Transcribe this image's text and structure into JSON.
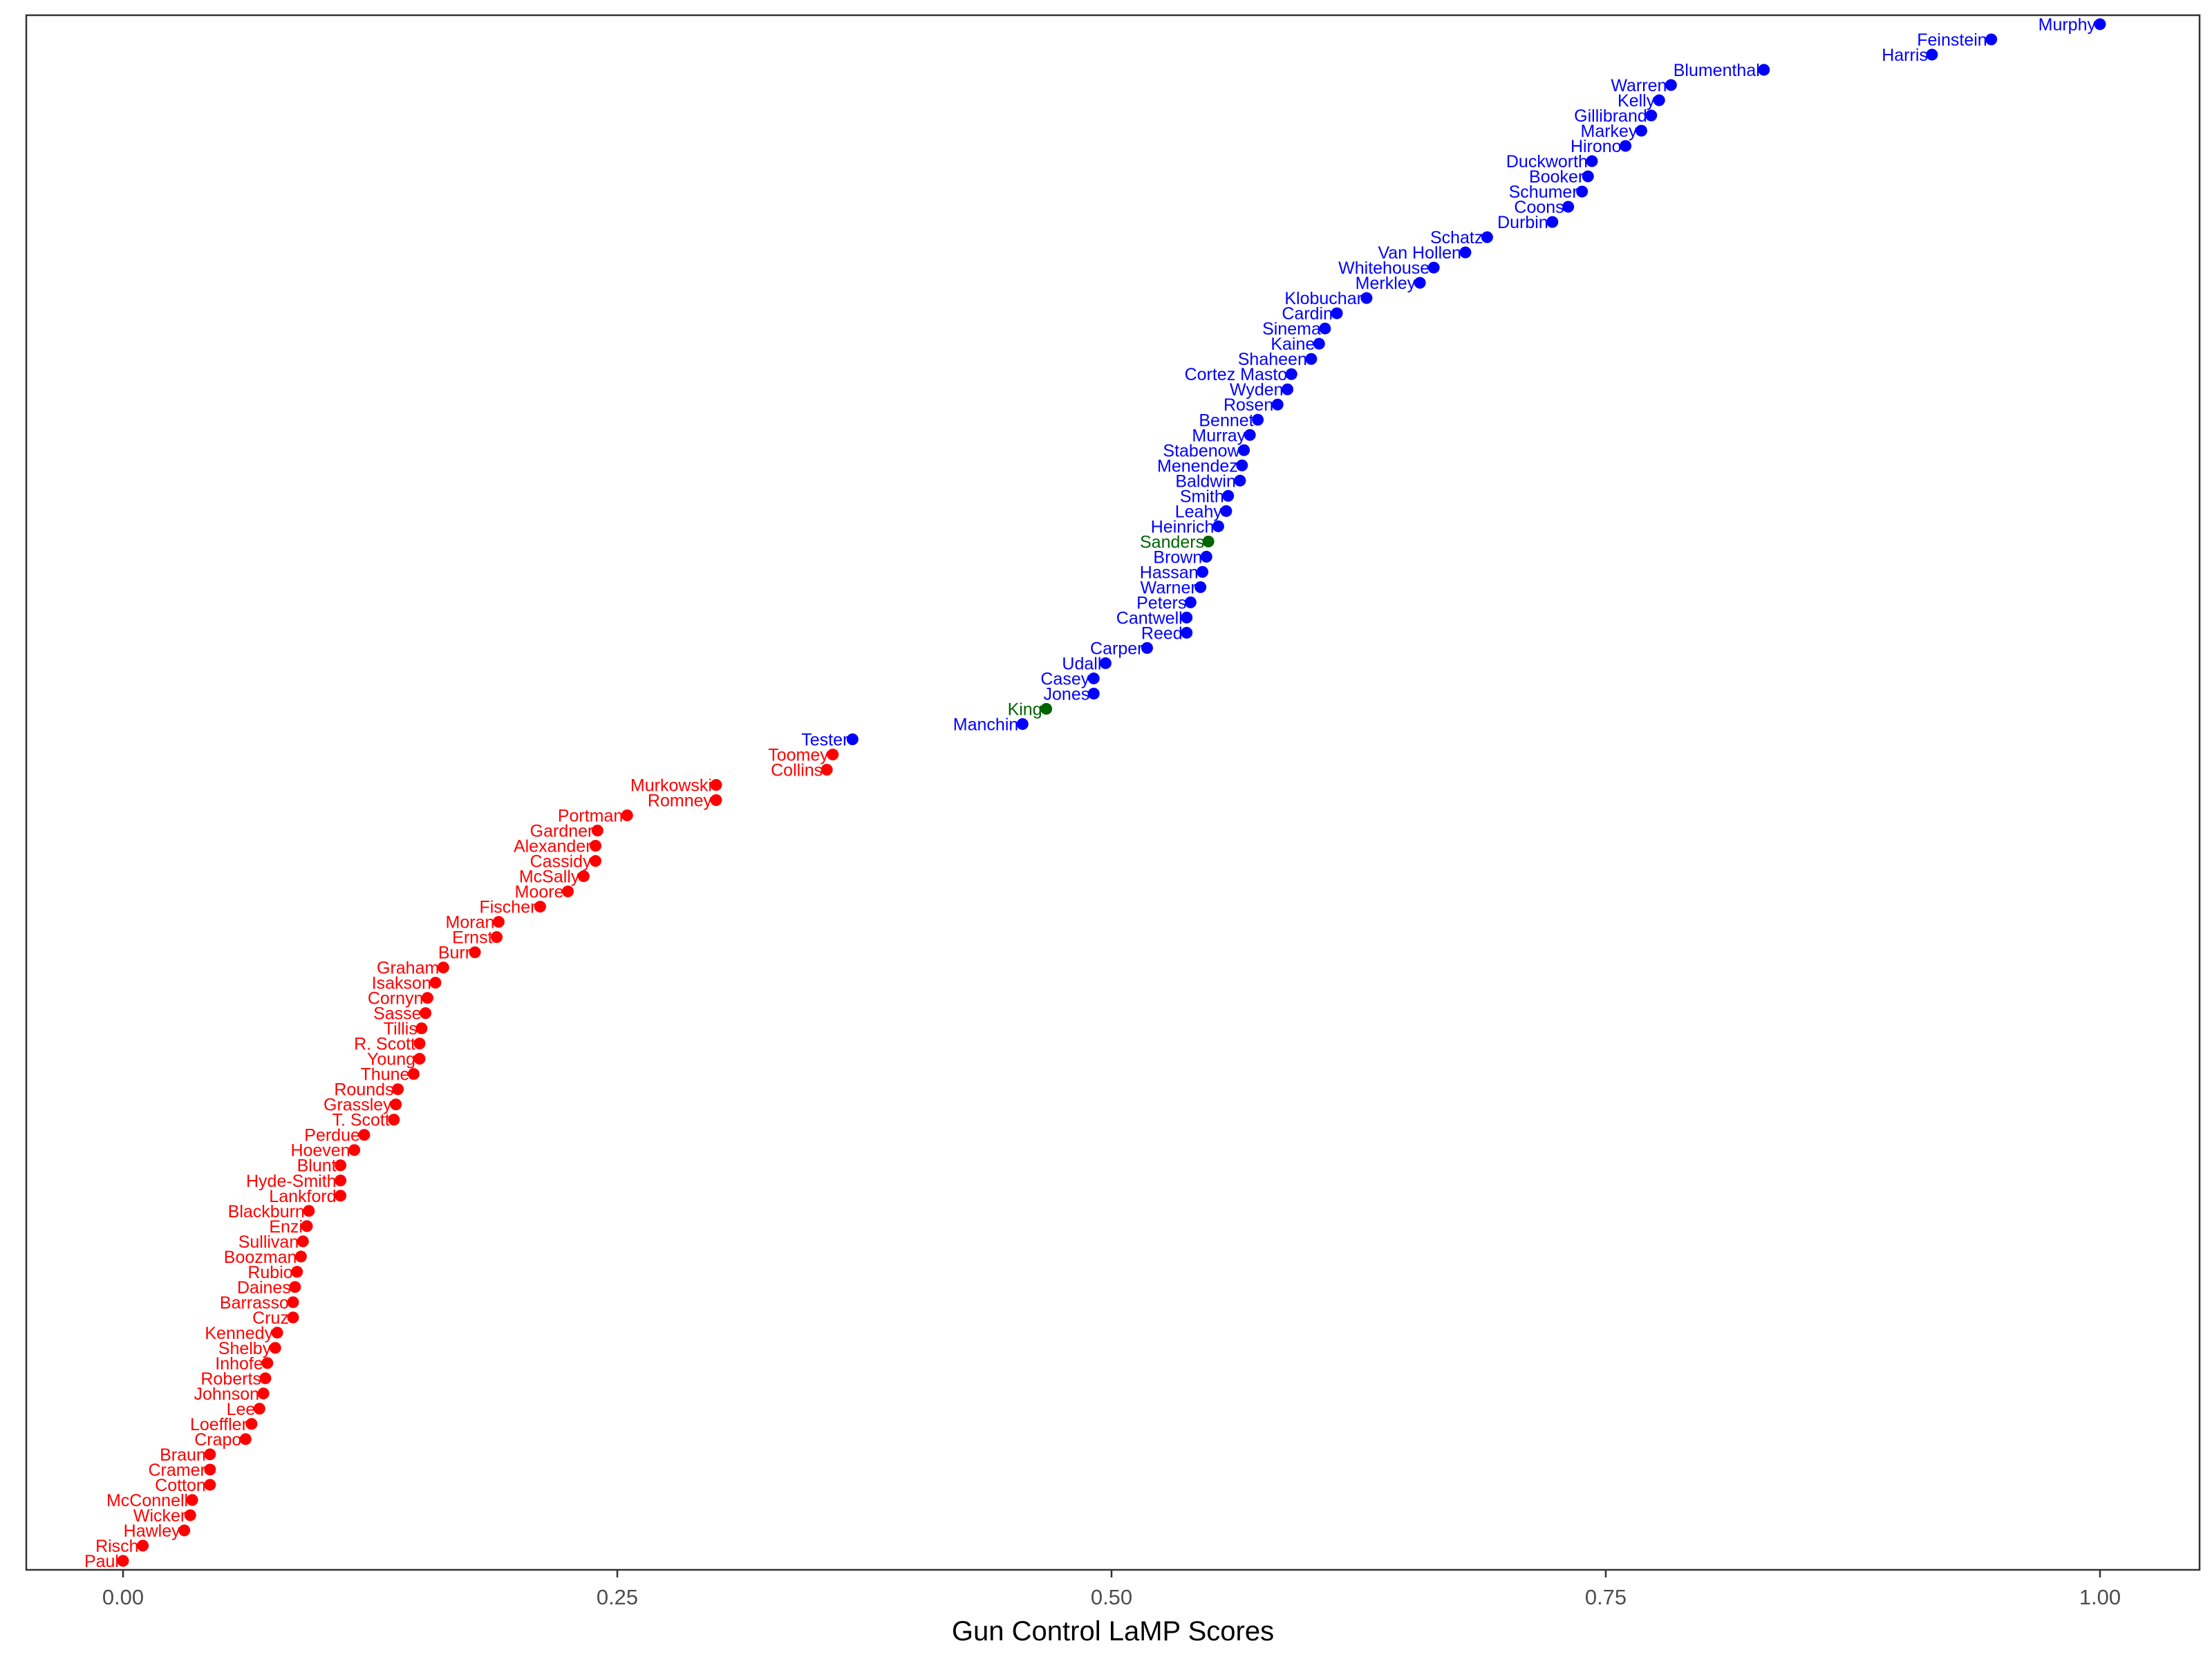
{
  "chart_data": {
    "type": "scatter",
    "xlabel": "Gun Control LaMP Scores",
    "ylabel": "",
    "xlim": [
      -0.1,
      1.1
    ],
    "x_ticks": [
      0.0,
      0.25,
      0.5,
      0.75,
      1.0
    ],
    "x_tick_labels": [
      "0.00",
      "0.25",
      "0.50",
      "0.75",
      "1.00"
    ],
    "grid": false,
    "ordering": "senators sorted by score, lowest at bottom",
    "party_colors": {
      "D": "#0000ff",
      "R": "#ff0000",
      "I": "#006400"
    },
    "points": [
      {
        "name": "Murphy",
        "x": 1.0,
        "party": "D"
      },
      {
        "name": "Feinstein",
        "x": 0.945,
        "party": "D"
      },
      {
        "name": "Harris",
        "x": 0.915,
        "party": "D"
      },
      {
        "name": "Blumenthal",
        "x": 0.83,
        "party": "D"
      },
      {
        "name": "Warren",
        "x": 0.783,
        "party": "D"
      },
      {
        "name": "Kelly",
        "x": 0.777,
        "party": "D"
      },
      {
        "name": "Gillibrand",
        "x": 0.773,
        "party": "D"
      },
      {
        "name": "Markey",
        "x": 0.768,
        "party": "D"
      },
      {
        "name": "Hirono",
        "x": 0.76,
        "party": "D"
      },
      {
        "name": "Duckworth",
        "x": 0.743,
        "party": "D"
      },
      {
        "name": "Booker",
        "x": 0.741,
        "party": "D"
      },
      {
        "name": "Schumer",
        "x": 0.738,
        "party": "D"
      },
      {
        "name": "Coons",
        "x": 0.731,
        "party": "D"
      },
      {
        "name": "Durbin",
        "x": 0.723,
        "party": "D"
      },
      {
        "name": "Schatz",
        "x": 0.69,
        "party": "D"
      },
      {
        "name": "Van Hollen",
        "x": 0.679,
        "party": "D"
      },
      {
        "name": "Whitehouse",
        "x": 0.663,
        "party": "D"
      },
      {
        "name": "Merkley",
        "x": 0.656,
        "party": "D"
      },
      {
        "name": "Klobuchar",
        "x": 0.629,
        "party": "D"
      },
      {
        "name": "Cardin",
        "x": 0.614,
        "party": "D"
      },
      {
        "name": "Sinema",
        "x": 0.608,
        "party": "D"
      },
      {
        "name": "Kaine",
        "x": 0.605,
        "party": "D"
      },
      {
        "name": "Shaheen",
        "x": 0.601,
        "party": "D"
      },
      {
        "name": "Cortez Masto",
        "x": 0.591,
        "party": "D"
      },
      {
        "name": "Wyden",
        "x": 0.589,
        "party": "D"
      },
      {
        "name": "Rosen",
        "x": 0.584,
        "party": "D"
      },
      {
        "name": "Bennet",
        "x": 0.574,
        "party": "D"
      },
      {
        "name": "Murray",
        "x": 0.57,
        "party": "D"
      },
      {
        "name": "Stabenow",
        "x": 0.567,
        "party": "D"
      },
      {
        "name": "Menendez",
        "x": 0.566,
        "party": "D"
      },
      {
        "name": "Baldwin",
        "x": 0.565,
        "party": "D"
      },
      {
        "name": "Smith",
        "x": 0.559,
        "party": "D"
      },
      {
        "name": "Leahy",
        "x": 0.558,
        "party": "D"
      },
      {
        "name": "Heinrich",
        "x": 0.554,
        "party": "D"
      },
      {
        "name": "Sanders",
        "x": 0.549,
        "party": "I"
      },
      {
        "name": "Brown",
        "x": 0.548,
        "party": "D"
      },
      {
        "name": "Hassan",
        "x": 0.546,
        "party": "D"
      },
      {
        "name": "Warner",
        "x": 0.545,
        "party": "D"
      },
      {
        "name": "Peters",
        "x": 0.54,
        "party": "D"
      },
      {
        "name": "Cantwell",
        "x": 0.538,
        "party": "D"
      },
      {
        "name": "Reed",
        "x": 0.538,
        "party": "D"
      },
      {
        "name": "Carper",
        "x": 0.518,
        "party": "D"
      },
      {
        "name": "Udall",
        "x": 0.497,
        "party": "D"
      },
      {
        "name": "Casey",
        "x": 0.491,
        "party": "D"
      },
      {
        "name": "Jones",
        "x": 0.491,
        "party": "D"
      },
      {
        "name": "King",
        "x": 0.467,
        "party": "I"
      },
      {
        "name": "Manchin",
        "x": 0.455,
        "party": "D"
      },
      {
        "name": "Tester",
        "x": 0.369,
        "party": "D"
      },
      {
        "name": "Toomey",
        "x": 0.359,
        "party": "R"
      },
      {
        "name": "Collins",
        "x": 0.356,
        "party": "R"
      },
      {
        "name": "Murkowski",
        "x": 0.3,
        "party": "R"
      },
      {
        "name": "Romney",
        "x": 0.3,
        "party": "R"
      },
      {
        "name": "Portman",
        "x": 0.255,
        "party": "R"
      },
      {
        "name": "Gardner",
        "x": 0.24,
        "party": "R"
      },
      {
        "name": "Alexander",
        "x": 0.239,
        "party": "R"
      },
      {
        "name": "Cassidy",
        "x": 0.239,
        "party": "R"
      },
      {
        "name": "McSally",
        "x": 0.233,
        "party": "R"
      },
      {
        "name": "Moore",
        "x": 0.225,
        "party": "R"
      },
      {
        "name": "Fischer",
        "x": 0.211,
        "party": "R"
      },
      {
        "name": "Moran",
        "x": 0.19,
        "party": "R"
      },
      {
        "name": "Ernst",
        "x": 0.189,
        "party": "R"
      },
      {
        "name": "Burr",
        "x": 0.178,
        "party": "R"
      },
      {
        "name": "Graham",
        "x": 0.162,
        "party": "R"
      },
      {
        "name": "Isakson",
        "x": 0.158,
        "party": "R"
      },
      {
        "name": "Cornyn",
        "x": 0.154,
        "party": "R"
      },
      {
        "name": "Sasse",
        "x": 0.153,
        "party": "R"
      },
      {
        "name": "Tillis",
        "x": 0.151,
        "party": "R"
      },
      {
        "name": "R. Scott",
        "x": 0.15,
        "party": "R"
      },
      {
        "name": "Young",
        "x": 0.15,
        "party": "R"
      },
      {
        "name": "Thune",
        "x": 0.147,
        "party": "R"
      },
      {
        "name": "Rounds",
        "x": 0.139,
        "party": "R"
      },
      {
        "name": "Grassley",
        "x": 0.138,
        "party": "R"
      },
      {
        "name": "T. Scott",
        "x": 0.137,
        "party": "R"
      },
      {
        "name": "Perdue",
        "x": 0.122,
        "party": "R"
      },
      {
        "name": "Hoeven",
        "x": 0.117,
        "party": "R"
      },
      {
        "name": "Blunt",
        "x": 0.11,
        "party": "R"
      },
      {
        "name": "Hyde-Smith",
        "x": 0.11,
        "party": "R"
      },
      {
        "name": "Lankford",
        "x": 0.11,
        "party": "R"
      },
      {
        "name": "Blackburn",
        "x": 0.094,
        "party": "R"
      },
      {
        "name": "Enzi",
        "x": 0.093,
        "party": "R"
      },
      {
        "name": "Sullivan",
        "x": 0.091,
        "party": "R"
      },
      {
        "name": "Boozman",
        "x": 0.09,
        "party": "R"
      },
      {
        "name": "Rubio",
        "x": 0.088,
        "party": "R"
      },
      {
        "name": "Daines",
        "x": 0.087,
        "party": "R"
      },
      {
        "name": "Barrasso",
        "x": 0.086,
        "party": "R"
      },
      {
        "name": "Cruz",
        "x": 0.086,
        "party": "R"
      },
      {
        "name": "Kennedy",
        "x": 0.078,
        "party": "R"
      },
      {
        "name": "Shelby",
        "x": 0.077,
        "party": "R"
      },
      {
        "name": "Inhofe",
        "x": 0.073,
        "party": "R"
      },
      {
        "name": "Roberts",
        "x": 0.072,
        "party": "R"
      },
      {
        "name": "Johnson",
        "x": 0.071,
        "party": "R"
      },
      {
        "name": "Lee",
        "x": 0.069,
        "party": "R"
      },
      {
        "name": "Loeffler",
        "x": 0.065,
        "party": "R"
      },
      {
        "name": "Crapo",
        "x": 0.062,
        "party": "R"
      },
      {
        "name": "Braun",
        "x": 0.044,
        "party": "R"
      },
      {
        "name": "Cramer",
        "x": 0.044,
        "party": "R"
      },
      {
        "name": "Cotton",
        "x": 0.044,
        "party": "R"
      },
      {
        "name": "McConnell",
        "x": 0.035,
        "party": "R"
      },
      {
        "name": "Wicker",
        "x": 0.034,
        "party": "R"
      },
      {
        "name": "Hawley",
        "x": 0.031,
        "party": "R"
      },
      {
        "name": "Risch",
        "x": 0.01,
        "party": "R"
      },
      {
        "name": "Paul",
        "x": 0.0,
        "party": "R"
      }
    ]
  }
}
